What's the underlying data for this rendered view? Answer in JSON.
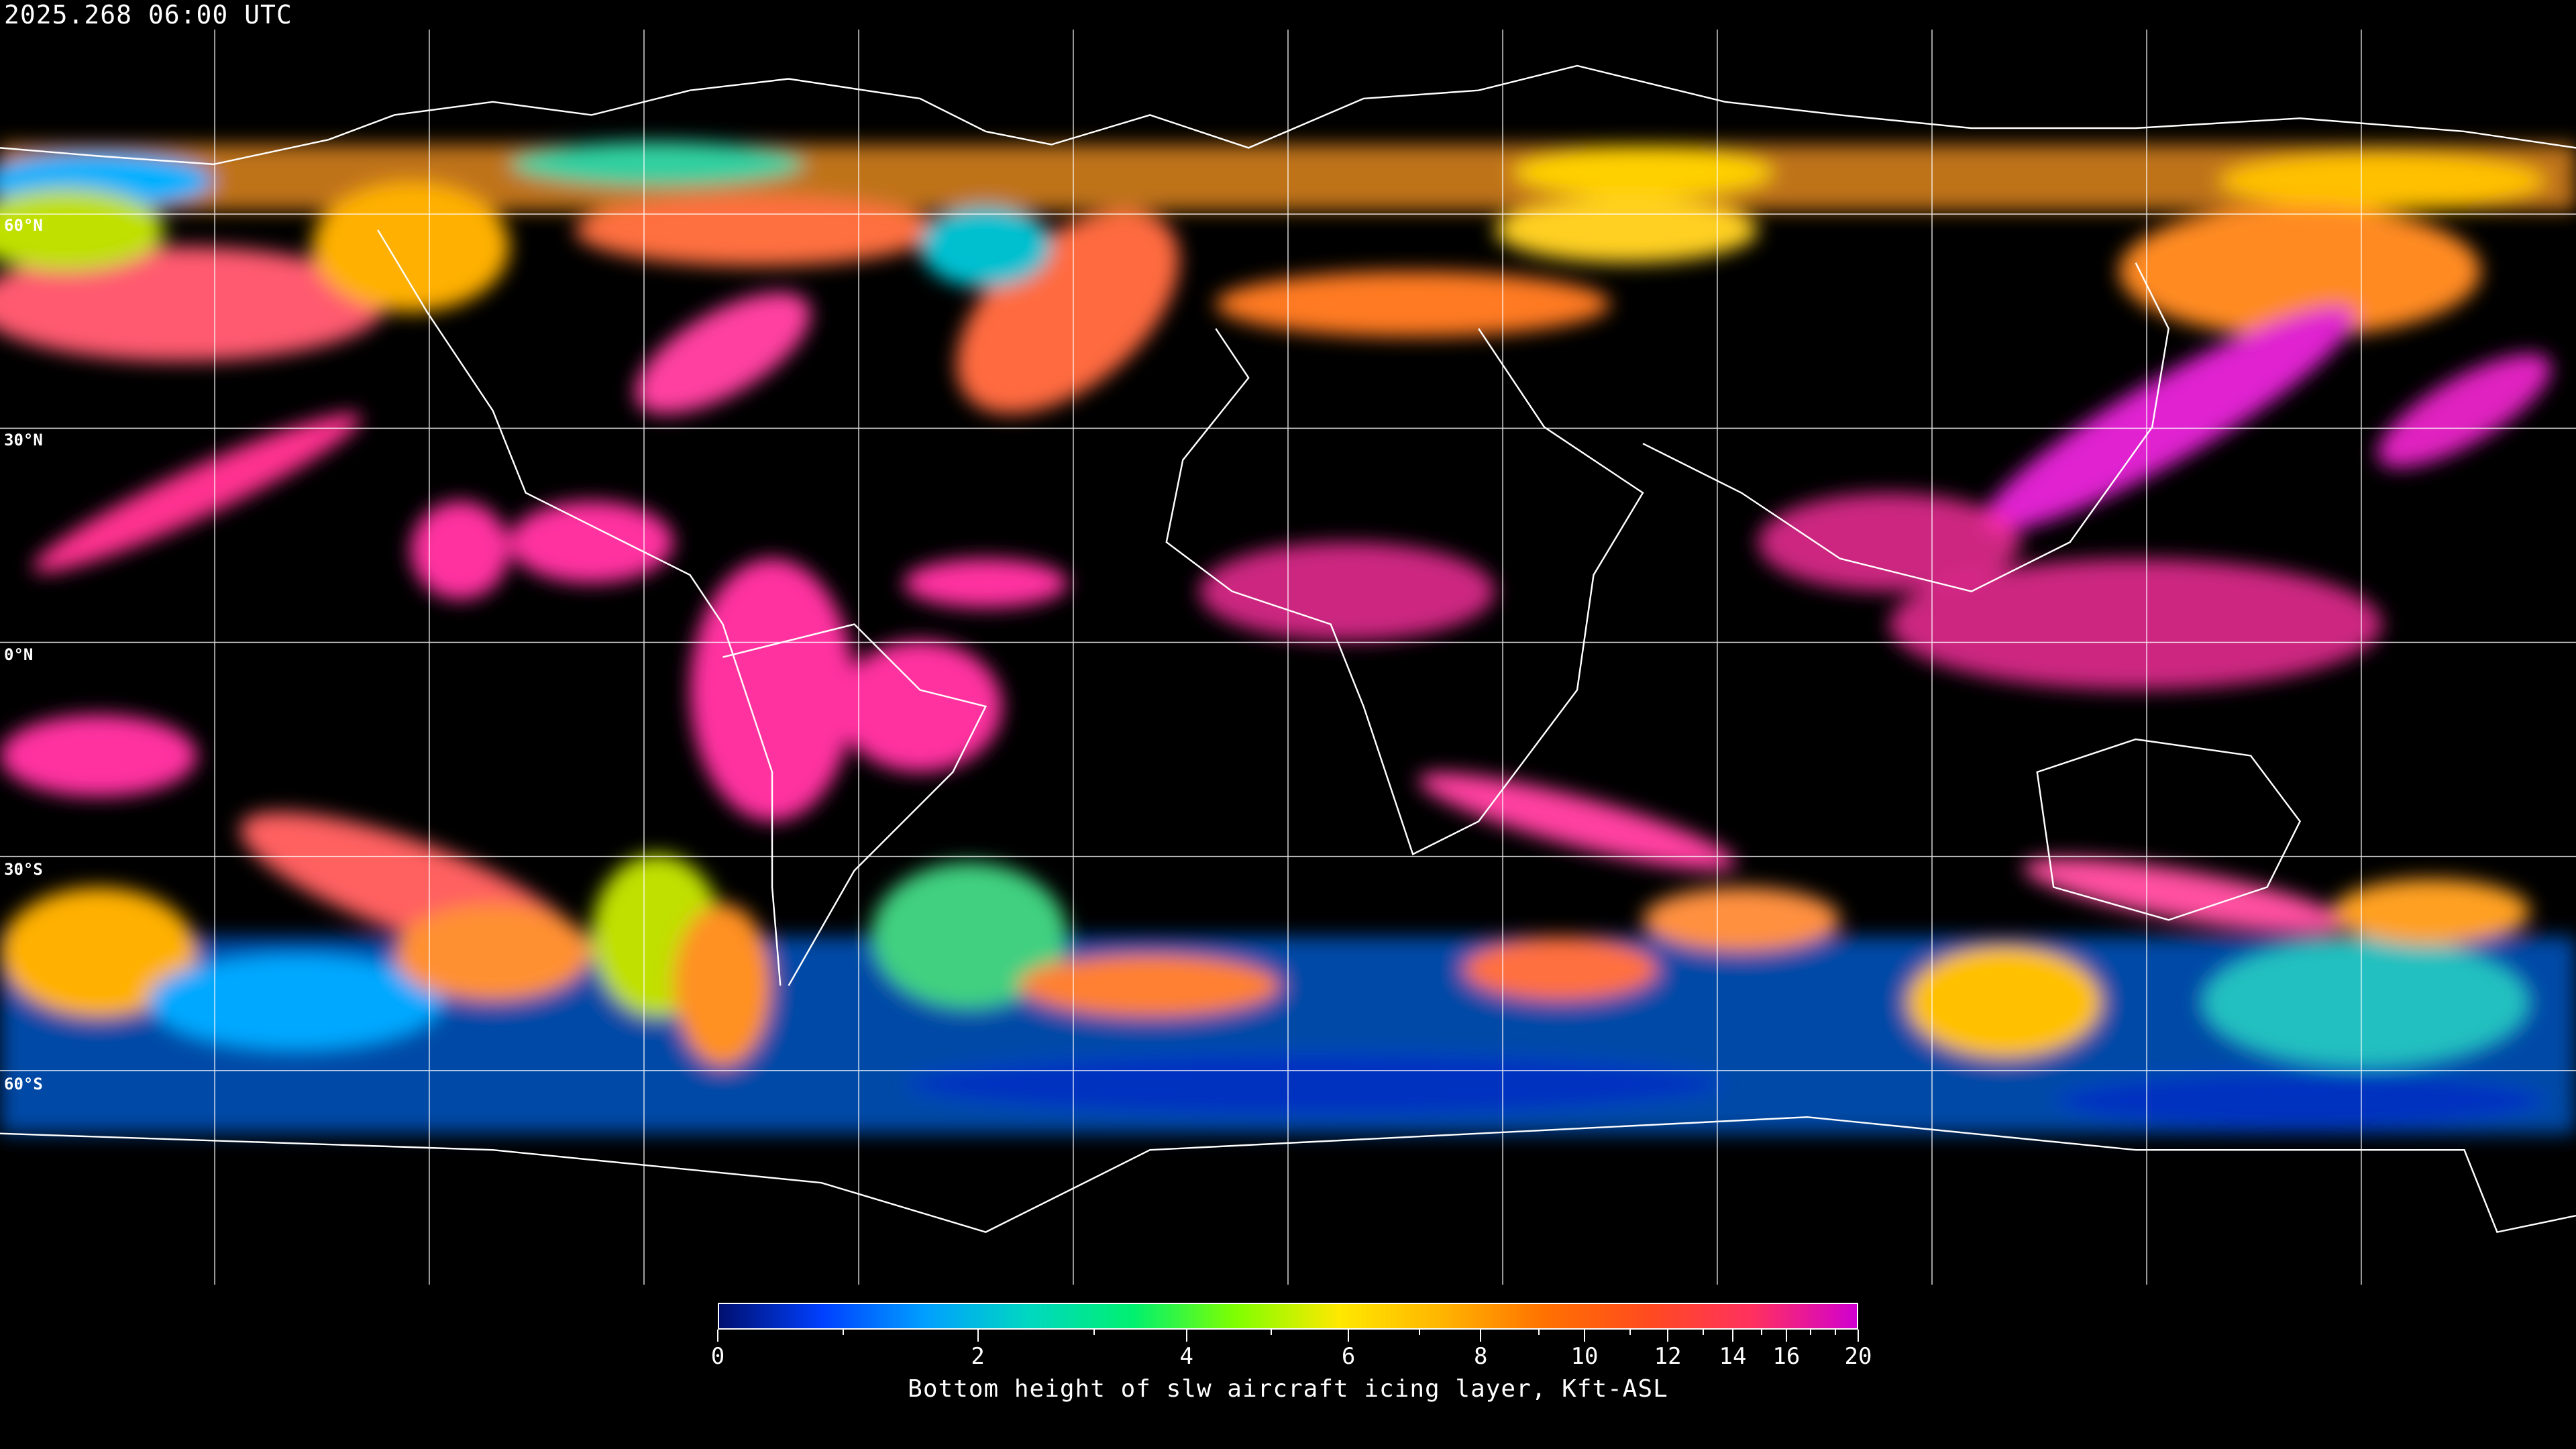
{
  "header": {
    "timestamp": "2025.268 06:00 UTC"
  },
  "map": {
    "projection": "equirectangular",
    "graticule_spacing_deg": 30,
    "lat_labels": [
      "60°N",
      "30°N",
      "0°N",
      "30°S",
      "60°S"
    ],
    "coastline_color": "#ffffff",
    "grid_color": "#ffffff",
    "background": "#000000"
  },
  "colorbar": {
    "title": "Bottom height of slw aircraft icing layer, Kft-ASL",
    "min": 0,
    "max": 20,
    "tick_labels": [
      "0",
      "2",
      "4",
      "6",
      "8",
      "10",
      "12",
      "14",
      "16",
      "20"
    ],
    "colors": [
      "#001070",
      "#0040ff",
      "#00a0ff",
      "#00d8c0",
      "#00f070",
      "#80ff00",
      "#ffe800",
      "#ffb400",
      "#ff7000",
      "#ff4a20",
      "#ff3060",
      "#d000d0"
    ]
  }
}
